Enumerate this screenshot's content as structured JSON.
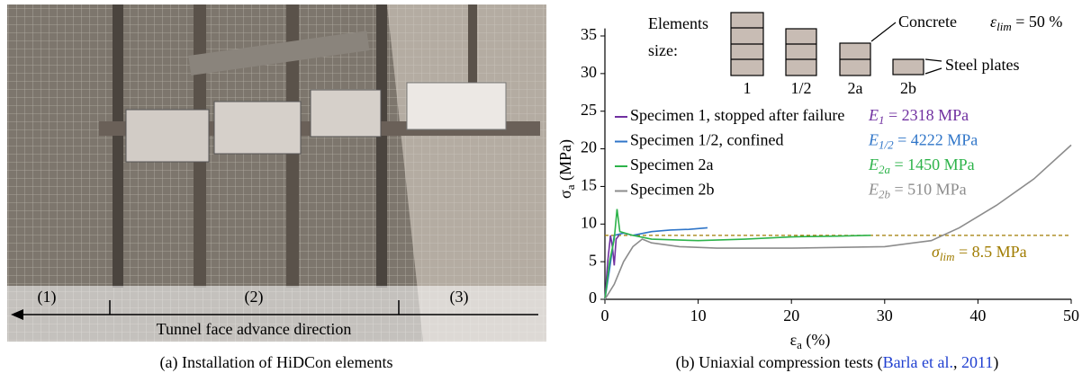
{
  "figure_a": {
    "zones": [
      "(1)",
      "(2)",
      "(3)"
    ],
    "arrow_label": "Tunnel face advance direction",
    "caption": "(a) Installation of HiDCon elements"
  },
  "caption_b": {
    "pre": "(b) Uniaxial compression tests (",
    "cite_author": "Barla et al.",
    "mid": ", ",
    "cite_year": "2011",
    "post": ")"
  },
  "chart_data": {
    "type": "line",
    "x_label": {
      "symbol": "ε",
      "sub": "a",
      "unit": " (%)"
    },
    "y_label": {
      "symbol": "σ",
      "sub": "a",
      "unit": " (MPa)"
    },
    "xlim": [
      0,
      50
    ],
    "xticks": [
      0,
      10,
      20,
      30,
      40,
      50
    ],
    "ylim": [
      0,
      36
    ],
    "yticks": [
      0,
      5,
      10,
      15,
      20,
      25,
      30,
      35
    ],
    "inset": {
      "title_line1": "Elements",
      "title_line2": "size:",
      "elements": [
        "1",
        "1/2",
        "2a",
        "2b"
      ],
      "concrete": "Concrete",
      "steel": "Steel plates",
      "limit": {
        "symbol": "ε",
        "sub": "lim",
        "text": " = 50 %"
      }
    },
    "threshold": {
      "value": 8.5,
      "symbol": "σ",
      "sub": "lim",
      "text": " = 8.5 MPa",
      "color": "#a07c00"
    },
    "series": [
      {
        "name": "Specimen 1, stopped after failure",
        "color": "#7030a0",
        "modulus": {
          "symbol": "E",
          "sub": "1",
          "text": " = 2318 MPa"
        },
        "x": [
          0,
          0.3,
          0.6,
          0.8,
          1.0,
          1.2,
          1.5
        ],
        "values": [
          0,
          5,
          8.5,
          7,
          4.5,
          8,
          8.5
        ]
      },
      {
        "name": "Specimen 1/2, confined",
        "color": "#2f75c8",
        "modulus": {
          "symbol": "E",
          "sub": "1/2",
          "text": " = 4222 MPa"
        },
        "x": [
          0,
          0.5,
          1,
          2,
          3,
          5,
          7,
          9,
          11
        ],
        "values": [
          0,
          4,
          8.5,
          8.8,
          8.5,
          9,
          9.2,
          9.3,
          9.5
        ]
      },
      {
        "name": "Specimen 2a",
        "color": "#2db34a",
        "modulus": {
          "symbol": "E",
          "sub": "2a",
          "text": " = 1450 MPa"
        },
        "x": [
          0,
          0.5,
          1,
          1.3,
          1.6,
          3,
          5,
          10,
          15,
          20,
          25,
          28.5
        ],
        "values": [
          0,
          5,
          8,
          12,
          9,
          8.5,
          8,
          7.8,
          8,
          8.3,
          8.4,
          8.5
        ]
      },
      {
        "name": "Specimen 2b",
        "color": "#8c8c8c",
        "modulus": {
          "symbol": "E",
          "sub": "2b",
          "text": " = 510 MPa"
        },
        "x": [
          0,
          1,
          2,
          3,
          4,
          5,
          8,
          12,
          20,
          30,
          35,
          38,
          42,
          46,
          50
        ],
        "values": [
          0,
          2,
          5,
          7,
          8,
          7.5,
          7,
          6.8,
          6.8,
          7,
          7.8,
          9.5,
          12.5,
          16,
          20.5
        ]
      }
    ]
  }
}
